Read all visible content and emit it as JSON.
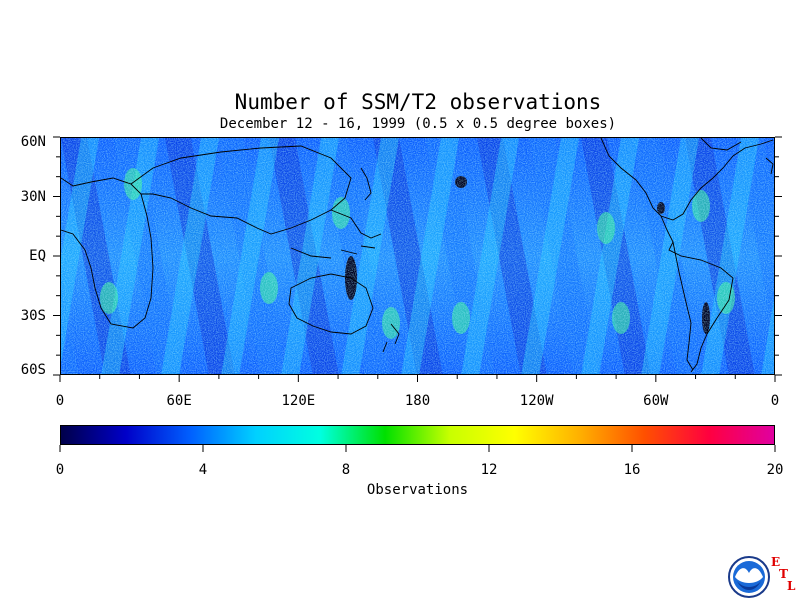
{
  "title": "Number of SSM/T2 observations",
  "subtitle": "December 12 - 16, 1999 (0.5 x 0.5 degree boxes)",
  "map": {
    "lat_labels": [
      "60N",
      "30N",
      "EQ",
      "30S",
      "60S"
    ],
    "lat_values": [
      60,
      30,
      0,
      -30,
      -60
    ],
    "lon_labels": [
      "0",
      "60E",
      "120E",
      "180",
      "120W",
      "60W",
      "0"
    ],
    "lon_values": [
      0,
      60,
      120,
      180,
      240,
      300,
      360
    ],
    "lat_range": [
      -60,
      60
    ],
    "lon_range": [
      0,
      360
    ]
  },
  "colorbar": {
    "title": "Observations",
    "tick_labels": [
      "0",
      "4",
      "8",
      "12",
      "16",
      "20"
    ],
    "tick_values": [
      0,
      4,
      8,
      12,
      16,
      20
    ],
    "range": [
      0,
      20
    ],
    "colors": [
      "#00004a",
      "#0000c8",
      "#0060ff",
      "#00d0ff",
      "#00ffe0",
      "#00e000",
      "#c8ff00",
      "#ffff00",
      "#ffb000",
      "#ff5000",
      "#ff0040",
      "#e000a0"
    ]
  },
  "logo": {
    "icon": "noaa-logo-icon",
    "letters": [
      "E",
      "T",
      "L"
    ]
  }
}
